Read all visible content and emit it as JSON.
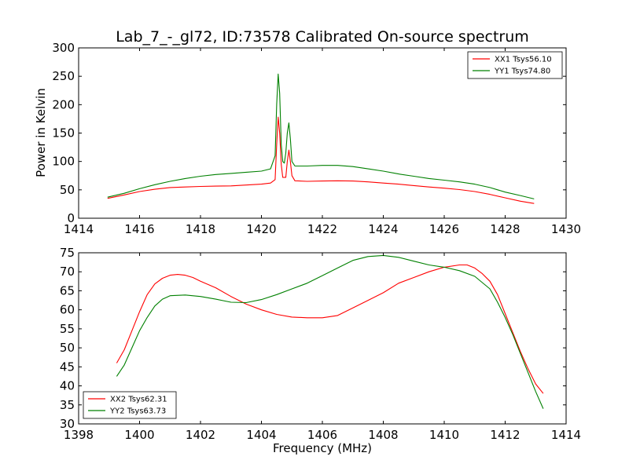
{
  "title": "Lab_7_-_gl72, ID:73578 Calibrated On-source spectrum",
  "colors": {
    "red": "#ff0000",
    "green": "#008000"
  },
  "chart_data": [
    {
      "type": "line",
      "ylabel": "Power in Kelvin",
      "xlabel": "",
      "xlim": [
        1414,
        1430
      ],
      "ylim": [
        0,
        300
      ],
      "xticks": [
        1414,
        1416,
        1418,
        1420,
        1422,
        1424,
        1426,
        1428,
        1430
      ],
      "yticks": [
        0,
        50,
        100,
        150,
        200,
        250,
        300
      ],
      "legend_loc": "top-right",
      "grid": false,
      "series": [
        {
          "name": "XX1 Tsys56.10",
          "color": "#ff0000",
          "points": [
            [
              1414.95,
              35
            ],
            [
              1415.5,
              41
            ],
            [
              1416.0,
              47
            ],
            [
              1416.5,
              51
            ],
            [
              1417.0,
              54
            ],
            [
              1417.5,
              55
            ],
            [
              1418.0,
              56
            ],
            [
              1418.5,
              56.5
            ],
            [
              1419.0,
              57
            ],
            [
              1419.5,
              58.5
            ],
            [
              1420.0,
              60
            ],
            [
              1420.3,
              62
            ],
            [
              1420.45,
              68
            ],
            [
              1420.5,
              130
            ],
            [
              1420.55,
              178
            ],
            [
              1420.6,
              150
            ],
            [
              1420.65,
              95
            ],
            [
              1420.7,
              72
            ],
            [
              1420.8,
              72
            ],
            [
              1420.85,
              100
            ],
            [
              1420.9,
              120
            ],
            [
              1420.95,
              100
            ],
            [
              1421.0,
              75
            ],
            [
              1421.1,
              66
            ],
            [
              1421.5,
              65
            ],
            [
              1422.0,
              65.5
            ],
            [
              1422.5,
              66
            ],
            [
              1423.0,
              65.5
            ],
            [
              1423.5,
              64
            ],
            [
              1424.0,
              62
            ],
            [
              1424.5,
              60
            ],
            [
              1425.0,
              57.5
            ],
            [
              1425.5,
              55
            ],
            [
              1426.0,
              53
            ],
            [
              1426.5,
              50.5
            ],
            [
              1427.0,
              47
            ],
            [
              1427.5,
              42
            ],
            [
              1428.0,
              36
            ],
            [
              1428.5,
              30
            ],
            [
              1428.95,
              26
            ]
          ]
        },
        {
          "name": "YY1 Tsys74.80",
          "color": "#008000",
          "points": [
            [
              1414.95,
              37
            ],
            [
              1415.5,
              44
            ],
            [
              1416.0,
              52
            ],
            [
              1416.5,
              59
            ],
            [
              1417.0,
              65
            ],
            [
              1417.5,
              70
            ],
            [
              1418.0,
              74
            ],
            [
              1418.5,
              77
            ],
            [
              1419.0,
              79
            ],
            [
              1419.5,
              81
            ],
            [
              1420.0,
              83
            ],
            [
              1420.3,
              87
            ],
            [
              1420.45,
              110
            ],
            [
              1420.5,
              200
            ],
            [
              1420.55,
              254
            ],
            [
              1420.6,
              220
            ],
            [
              1420.65,
              130
            ],
            [
              1420.7,
              100
            ],
            [
              1420.75,
              97
            ],
            [
              1420.8,
              115
            ],
            [
              1420.85,
              150
            ],
            [
              1420.9,
              168
            ],
            [
              1420.95,
              140
            ],
            [
              1421.0,
              100
            ],
            [
              1421.1,
              92
            ],
            [
              1421.5,
              92
            ],
            [
              1422.0,
              93
            ],
            [
              1422.5,
              93
            ],
            [
              1423.0,
              91
            ],
            [
              1423.5,
              87
            ],
            [
              1424.0,
              83
            ],
            [
              1424.5,
              78
            ],
            [
              1425.0,
              74
            ],
            [
              1425.5,
              70
            ],
            [
              1426.0,
              67
            ],
            [
              1426.5,
              64
            ],
            [
              1427.0,
              60
            ],
            [
              1427.5,
              54
            ],
            [
              1428.0,
              46
            ],
            [
              1428.5,
              40
            ],
            [
              1428.95,
              34
            ]
          ]
        }
      ]
    },
    {
      "type": "line",
      "xlabel": "Frequency (MHz)",
      "ylabel": "",
      "xlim": [
        1398,
        1414
      ],
      "ylim": [
        30,
        75
      ],
      "xticks": [
        1398,
        1400,
        1402,
        1404,
        1406,
        1408,
        1410,
        1412,
        1414
      ],
      "yticks": [
        30,
        35,
        40,
        45,
        50,
        55,
        60,
        65,
        70,
        75
      ],
      "legend_loc": "bottom-left",
      "grid": false,
      "series": [
        {
          "name": "XX2 Tsys62.31",
          "color": "#ff0000",
          "points": [
            [
              1399.25,
              46
            ],
            [
              1399.5,
              49.5
            ],
            [
              1399.75,
              54.5
            ],
            [
              1400.0,
              59.5
            ],
            [
              1400.25,
              64
            ],
            [
              1400.5,
              66.8
            ],
            [
              1400.75,
              68.3
            ],
            [
              1401.0,
              69.1
            ],
            [
              1401.25,
              69.3
            ],
            [
              1401.5,
              69.1
            ],
            [
              1401.75,
              68.5
            ],
            [
              1402.0,
              67.5
            ],
            [
              1402.5,
              65.8
            ],
            [
              1403.0,
              63.5
            ],
            [
              1403.5,
              61.5
            ],
            [
              1404.0,
              60
            ],
            [
              1404.5,
              58.8
            ],
            [
              1405.0,
              58.1
            ],
            [
              1405.5,
              57.9
            ],
            [
              1406.0,
              57.9
            ],
            [
              1406.5,
              58.5
            ],
            [
              1407.0,
              60.5
            ],
            [
              1407.5,
              62.5
            ],
            [
              1408.0,
              64.5
            ],
            [
              1408.5,
              67
            ],
            [
              1409.0,
              68.5
            ],
            [
              1409.5,
              70
            ],
            [
              1410.0,
              71.2
            ],
            [
              1410.5,
              71.8
            ],
            [
              1410.75,
              71.8
            ],
            [
              1411.0,
              71
            ],
            [
              1411.25,
              69.5
            ],
            [
              1411.5,
              67.5
            ],
            [
              1411.75,
              64
            ],
            [
              1412.0,
              59
            ],
            [
              1412.25,
              54
            ],
            [
              1412.5,
              49
            ],
            [
              1412.75,
              44.5
            ],
            [
              1413.0,
              40.5
            ],
            [
              1413.25,
              38
            ]
          ]
        },
        {
          "name": "YY2 Tsys63.73",
          "color": "#008000",
          "points": [
            [
              1399.25,
              42.5
            ],
            [
              1399.5,
              45.5
            ],
            [
              1399.75,
              50
            ],
            [
              1400.0,
              54.5
            ],
            [
              1400.25,
              58
            ],
            [
              1400.5,
              61
            ],
            [
              1400.75,
              62.8
            ],
            [
              1401.0,
              63.7
            ],
            [
              1401.5,
              63.9
            ],
            [
              1402.0,
              63.5
            ],
            [
              1402.5,
              62.8
            ],
            [
              1403.0,
              62
            ],
            [
              1403.5,
              61.9
            ],
            [
              1404.0,
              62.7
            ],
            [
              1404.5,
              64
            ],
            [
              1405.0,
              65.5
            ],
            [
              1405.5,
              67
            ],
            [
              1406.0,
              69
            ],
            [
              1406.5,
              71
            ],
            [
              1407.0,
              73
            ],
            [
              1407.5,
              74
            ],
            [
              1408.0,
              74.3
            ],
            [
              1408.5,
              73.8
            ],
            [
              1409.0,
              72.8
            ],
            [
              1409.5,
              71.8
            ],
            [
              1410.0,
              71.2
            ],
            [
              1410.5,
              70.3
            ],
            [
              1411.0,
              68.8
            ],
            [
              1411.5,
              65.5
            ],
            [
              1411.75,
              62
            ],
            [
              1412.0,
              58
            ],
            [
              1412.25,
              53.5
            ],
            [
              1412.5,
              48.5
            ],
            [
              1412.75,
              43.5
            ],
            [
              1413.0,
              38.5
            ],
            [
              1413.25,
              34
            ]
          ]
        }
      ]
    }
  ]
}
